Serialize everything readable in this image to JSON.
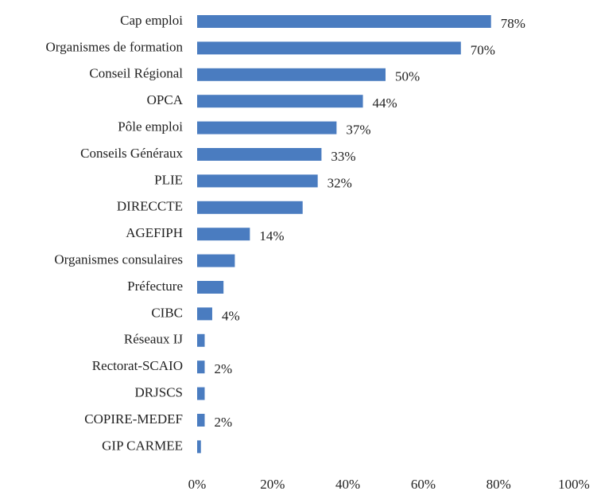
{
  "chart_data": {
    "type": "barh",
    "categories": [
      "Cap emploi",
      "Organismes de formation",
      "Conseil Régional",
      "OPCA",
      "Pôle emploi",
      "Conseils Généraux",
      "PLIE",
      "DIRECCTE",
      "AGEFIPH",
      "Organismes consulaires",
      "Préfecture",
      "CIBC",
      "Réseaux IJ",
      "Rectorat-SCAIO",
      "DRJSCS",
      "COPIRE-MEDEF",
      "GIP CARMEE"
    ],
    "values": [
      78,
      70,
      50,
      44,
      37,
      33,
      32,
      28,
      14,
      10,
      7,
      4,
      2,
      2,
      2,
      2,
      1
    ],
    "value_labels": [
      "78%",
      "70%",
      "50%",
      "44%",
      "37%",
      "33%",
      "32%",
      null,
      "14%",
      null,
      null,
      "4%",
      null,
      "2%",
      null,
      "2%",
      null
    ],
    "color": "#4a7cc0",
    "xlim": [
      0,
      100
    ],
    "xticks": [
      {
        "value": 0,
        "label": "0%"
      },
      {
        "value": 20,
        "label": "20%"
      },
      {
        "value": 40,
        "label": "40%"
      },
      {
        "value": 60,
        "label": "60%"
      },
      {
        "value": 80,
        "label": "80%"
      },
      {
        "value": 100,
        "label": "100%"
      }
    ],
    "grid": false
  }
}
